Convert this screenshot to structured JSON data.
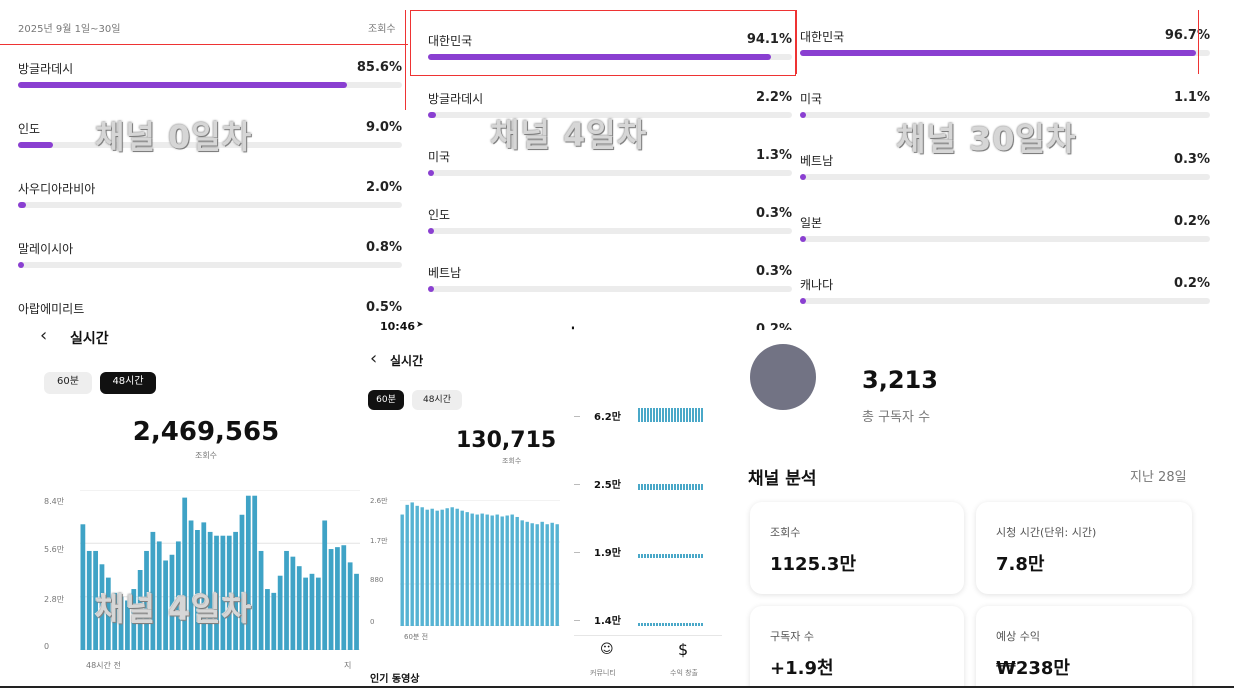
{
  "panel_day0": {
    "date_range": "2025년 9월 1일~30일",
    "col_label": "조회수",
    "overlay": "채널 0일차",
    "rows": [
      {
        "label": "방글라데시",
        "pct": "85.6%",
        "value": 85.6
      },
      {
        "label": "인도",
        "pct": "9.0%",
        "value": 9.0
      },
      {
        "label": "사우디아라비아",
        "pct": "2.0%",
        "value": 2.0
      },
      {
        "label": "말레이시아",
        "pct": "0.8%",
        "value": 0.8
      },
      {
        "label": "아랍에미리트",
        "pct": "0.5%",
        "value": 0.5
      }
    ]
  },
  "panel_day4": {
    "overlay": "채널 4일차",
    "rows": [
      {
        "label": "대한민국",
        "pct": "94.1%",
        "value": 94.1
      },
      {
        "label": "방글라데시",
        "pct": "2.2%",
        "value": 2.2
      },
      {
        "label": "미국",
        "pct": "1.3%",
        "value": 1.3
      },
      {
        "label": "인도",
        "pct": "0.3%",
        "value": 0.3
      },
      {
        "label": "베트남",
        "pct": "0.3%",
        "value": 0.3
      },
      {
        "label": "",
        "pct": "0.2%",
        "value": 0.2
      }
    ]
  },
  "panel_day30": {
    "overlay": "채널 30일차",
    "rows": [
      {
        "label": "대한민국",
        "pct": "96.7%",
        "value": 96.7
      },
      {
        "label": "미국",
        "pct": "1.1%",
        "value": 1.1
      },
      {
        "label": "베트남",
        "pct": "0.3%",
        "value": 0.3
      },
      {
        "label": "일본",
        "pct": "0.2%",
        "value": 0.2
      },
      {
        "label": "캐나다",
        "pct": "0.2%",
        "value": 0.2
      }
    ]
  },
  "realtime_left": {
    "back_icon": "chevron-left-icon",
    "title": "실시간",
    "tab_60": "60분",
    "tab_48": "48시간",
    "total": "2,469,565",
    "total_label": "조회수",
    "overlay": "채널 4일차",
    "y_ticks": [
      "8.4만",
      "5.6만",
      "2.8만",
      "0"
    ],
    "x_start": "48시간 전",
    "x_end": "지"
  },
  "realtime_mid": {
    "status_time": "10:46",
    "status_icons": "signal wifi battery",
    "title": "실시간",
    "tab_60": "60분",
    "tab_48": "48시간",
    "total": "130,715",
    "total_label": "조회수",
    "y_ticks": [
      "2.6만",
      "1.7만",
      "880",
      "0"
    ],
    "x_start": "60분 전",
    "popular": "인기 동영상"
  },
  "realtime_right": {
    "rows": [
      {
        "label": "6.2만",
        "value": 62000
      },
      {
        "label": "2.5만",
        "value": 25000
      },
      {
        "label": "1.9만",
        "value": 19000
      },
      {
        "label": "1.4만",
        "value": 14000
      }
    ],
    "nav_community": "커뮤니티",
    "nav_revenue": "수익 창출"
  },
  "summary": {
    "subscribers": "3,213",
    "subscribers_label": "총 구독자 수",
    "section_title": "채널 분석",
    "period": "지난 28일",
    "cards": [
      {
        "title": "조회수",
        "value": "1125.3만"
      },
      {
        "title": "시청 시간(단위: 시간)",
        "value": "7.8만"
      },
      {
        "title": "구독자 수",
        "value": "+1.9천"
      },
      {
        "title": "예상 수익",
        "value": "₩238만"
      }
    ]
  },
  "chart_data": [
    {
      "type": "bar",
      "title": "",
      "ylim": [
        0,
        84000
      ],
      "y_ticks": [
        "0",
        "2.8만",
        "5.6만",
        "8.4만"
      ],
      "values": [
        66000,
        52000,
        52000,
        45000,
        38000,
        30000,
        28000,
        26000,
        32000,
        42000,
        52000,
        62000,
        57000,
        47000,
        50000,
        57000,
        80000,
        68000,
        63000,
        67000,
        62000,
        60000,
        60000,
        60000,
        62000,
        71000,
        81000,
        81000,
        52000,
        32000,
        30000,
        39000,
        52000,
        49000,
        44000,
        38000,
        40000,
        38000,
        68000,
        53000,
        54000,
        55000,
        46000,
        40000
      ]
    },
    {
      "type": "bar",
      "title": "",
      "ylim": [
        0,
        26000
      ],
      "y_ticks": [
        "0",
        "880",
        "1.7만",
        "2.6만"
      ],
      "values": [
        23000,
        25000,
        25500,
        24800,
        24500,
        24000,
        24200,
        23800,
        24000,
        24300,
        24500,
        24200,
        23800,
        23500,
        23200,
        23000,
        23200,
        23000,
        22800,
        23000,
        22600,
        22800,
        23000,
        22500,
        21800,
        21500,
        21200,
        21000,
        21500,
        21000,
        21300,
        21000
      ]
    }
  ]
}
